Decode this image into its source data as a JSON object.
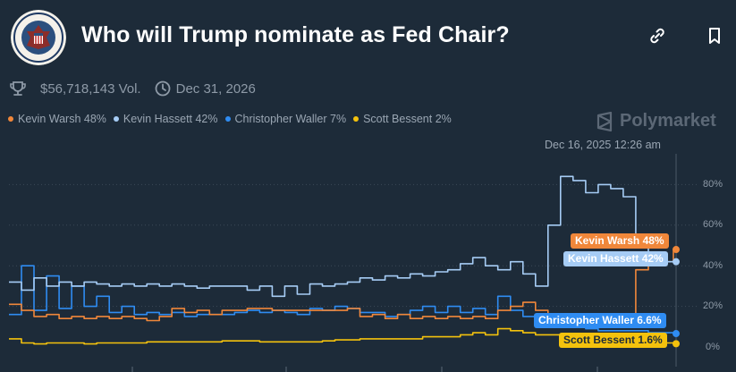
{
  "market": {
    "title": "Who will Trump nominate as Fed Chair?",
    "volume": "$56,718,143 Vol.",
    "end_date": "Dec 31, 2026",
    "brand": "Polymarket",
    "timestamp": "Dec 16, 2025 12:26 am"
  },
  "legend": [
    {
      "label": "Kevin Warsh 48%",
      "color": "#f0873a"
    },
    {
      "label": "Kevin Hassett 42%",
      "color": "#a6ccf5"
    },
    {
      "label": "Christopher Waller 7%",
      "color": "#2f8cf2"
    },
    {
      "label": "Scott Bessent 2%",
      "color": "#f4c20d"
    }
  ],
  "end_labels": [
    {
      "label": "Kevin Warsh 48%",
      "bg": "#f0873a",
      "fg": "#ffffff"
    },
    {
      "label": "Kevin Hassett 42%",
      "bg": "#a6ccf5",
      "fg": "#ffffff"
    },
    {
      "label": "Christopher Waller 6.6%",
      "bg": "#2f8cf2",
      "fg": "#ffffff"
    },
    {
      "label": "Scott Bessent 1.6%",
      "bg": "#f4c20d",
      "fg": "#1d2b39"
    }
  ],
  "icons": {
    "volume": "trophy-icon",
    "date": "clock-icon",
    "link": "link-icon",
    "bookmark": "bookmark-icon"
  },
  "chart_data": {
    "type": "line",
    "y_ticks": [
      "80%",
      "60%",
      "40%",
      "20%",
      "0%"
    ],
    "y_values": [
      80,
      60,
      40,
      20,
      0
    ],
    "ylim": [
      0,
      100
    ],
    "series": [
      {
        "name": "Kevin Warsh",
        "color": "#f0873a",
        "end_value": 48,
        "values": [
          21,
          18,
          15,
          16,
          14,
          15,
          14,
          15,
          14,
          15,
          14,
          13,
          15,
          19,
          17,
          18,
          16,
          18,
          18,
          19,
          19,
          18,
          18,
          18,
          18,
          18,
          18,
          19,
          15,
          16,
          14,
          16,
          14,
          15,
          14,
          15,
          14,
          15,
          14,
          18,
          20,
          22,
          18,
          16,
          15,
          16,
          14,
          15,
          14,
          13,
          38,
          40,
          42,
          48
        ]
      },
      {
        "name": "Kevin Hassett",
        "color": "#a6ccf5",
        "end_value": 42,
        "values": [
          32,
          28,
          34,
          30,
          32,
          30,
          32,
          31,
          30,
          31,
          30,
          31,
          30,
          31,
          30,
          29,
          30,
          30,
          30,
          28,
          30,
          25,
          30,
          26,
          31,
          30,
          31,
          32,
          34,
          33,
          35,
          34,
          36,
          35,
          37,
          38,
          41,
          44,
          40,
          38,
          42,
          36,
          30,
          60,
          84,
          82,
          76,
          80,
          78,
          74,
          50,
          44,
          42,
          42
        ]
      },
      {
        "name": "Christopher Waller",
        "color": "#2f8cf2",
        "end_value": 6.6,
        "values": [
          16,
          40,
          18,
          35,
          19,
          30,
          20,
          25,
          17,
          20,
          16,
          17,
          16,
          17,
          15,
          16,
          16,
          16,
          17,
          18,
          17,
          18,
          17,
          16,
          19,
          18,
          20,
          19,
          17,
          17,
          15,
          16,
          18,
          20,
          17,
          20,
          17,
          19,
          16,
          25,
          18,
          15,
          14,
          12,
          10,
          10,
          9,
          8,
          8,
          8,
          8,
          7,
          7,
          6.6
        ]
      },
      {
        "name": "Scott Bessent",
        "color": "#f4c20d",
        "end_value": 1.6,
        "values": [
          4,
          2,
          1.5,
          2,
          2,
          2,
          1.5,
          2,
          2,
          2,
          2,
          2.5,
          2.5,
          2.5,
          2.5,
          2.5,
          2.5,
          3,
          3,
          3,
          2.5,
          2.5,
          2.5,
          2.5,
          2.5,
          3,
          3.5,
          3.5,
          4,
          4,
          4,
          4,
          4,
          5,
          5,
          5,
          6,
          7,
          6,
          9,
          8,
          7,
          6,
          6,
          5,
          5,
          4.5,
          4,
          4,
          3,
          3,
          2.5,
          2,
          1.6
        ]
      }
    ]
  }
}
